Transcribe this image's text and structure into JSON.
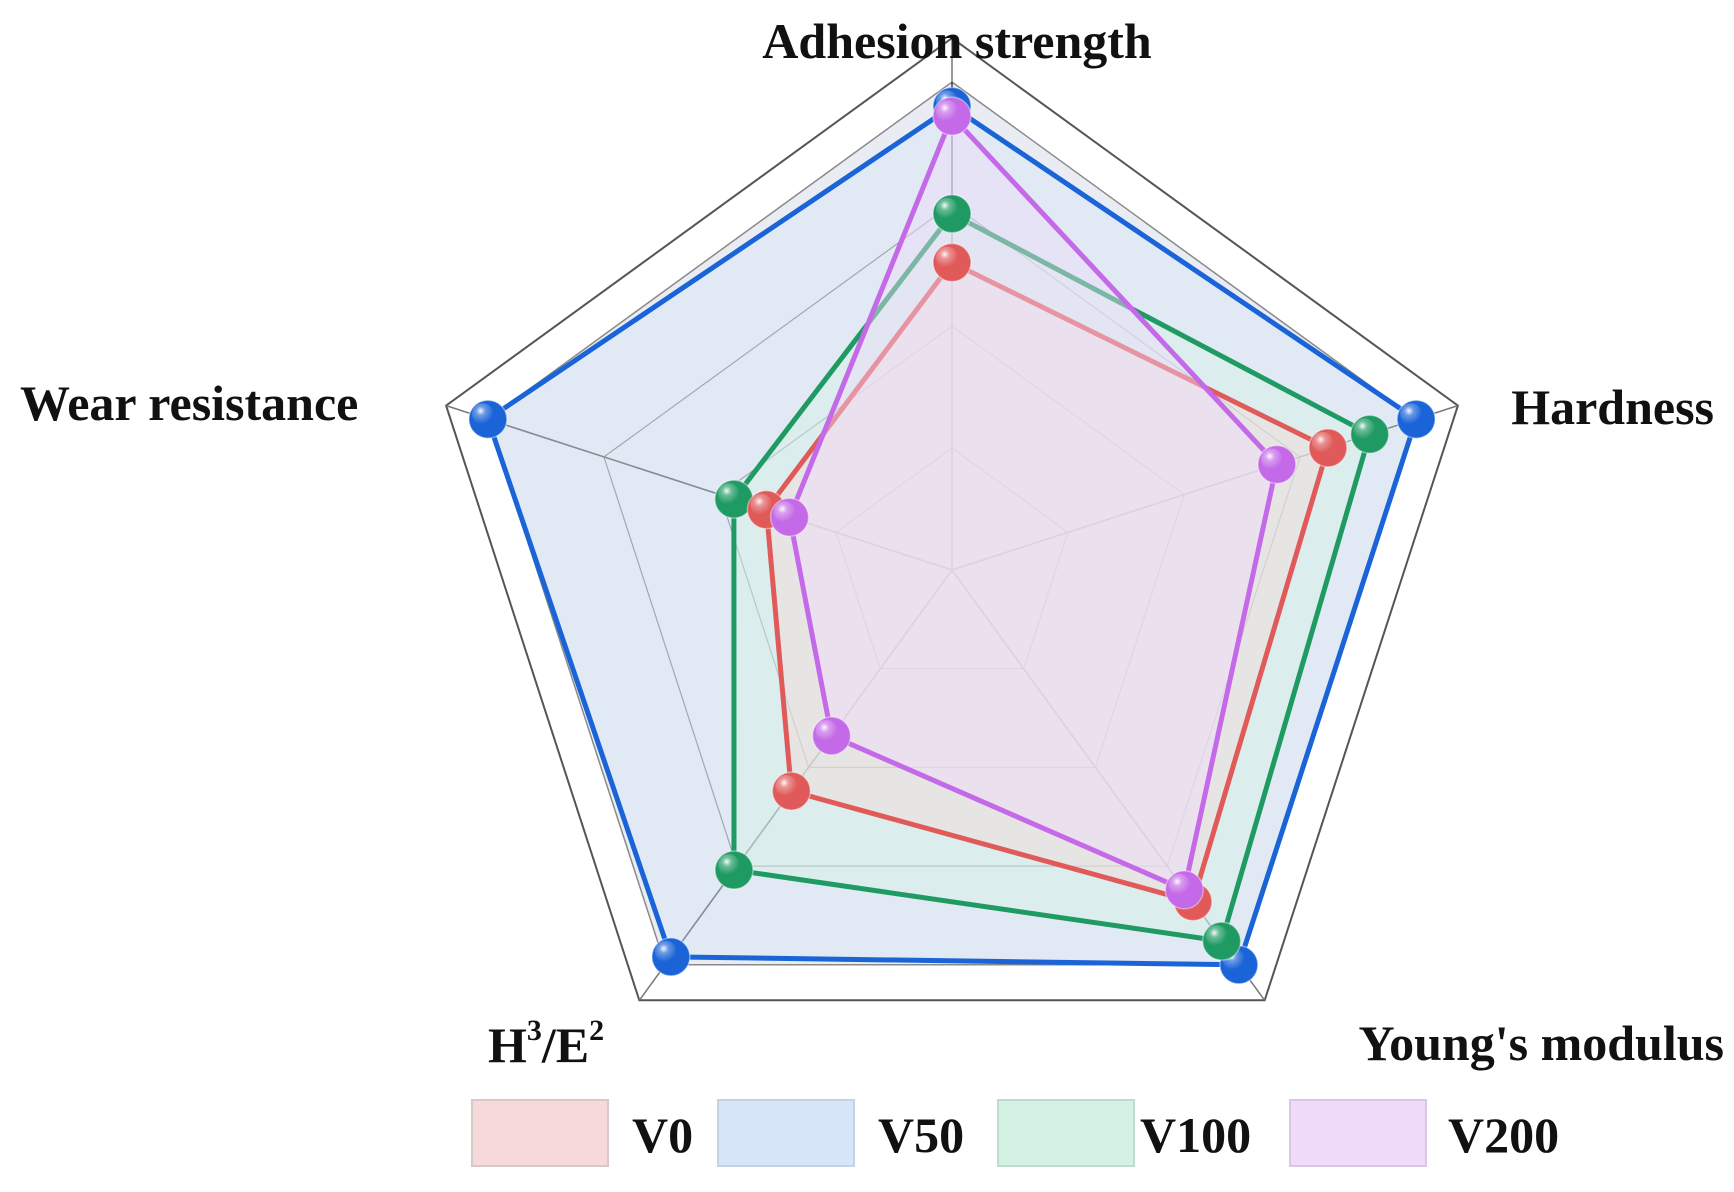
{
  "chart_data": {
    "type": "radar",
    "axes": [
      "Adhesion strength",
      "Hardness",
      "Young's modulus",
      "H³/E²",
      "Wear resistance"
    ],
    "axis_label_parts": {
      "h3e2": {
        "H": "H",
        "sup1": "3",
        "mid": "/E",
        "sup2": "2"
      }
    },
    "range": [
      0,
      1
    ],
    "grid_levels": 4,
    "series": [
      {
        "name": "V0",
        "color": "#e05a5a",
        "fill": "#f7d9d9",
        "values": [
          0.63,
          0.81,
          0.84,
          0.56,
          0.4
        ]
      },
      {
        "name": "V50",
        "color": "#1a64d8",
        "fill": "#d6e5f7",
        "values": [
          0.95,
          1.0,
          1.0,
          0.98,
          1.0
        ]
      },
      {
        "name": "V100",
        "color": "#1e9a62",
        "fill": "#d4f1e4",
        "values": [
          0.73,
          0.9,
          0.94,
          0.76,
          0.47
        ]
      },
      {
        "name": "V200",
        "color": "#c46ae8",
        "fill": "#efdcfa",
        "values": [
          0.93,
          0.7,
          0.81,
          0.42,
          0.35
        ]
      }
    ],
    "legend_position": "bottom"
  }
}
